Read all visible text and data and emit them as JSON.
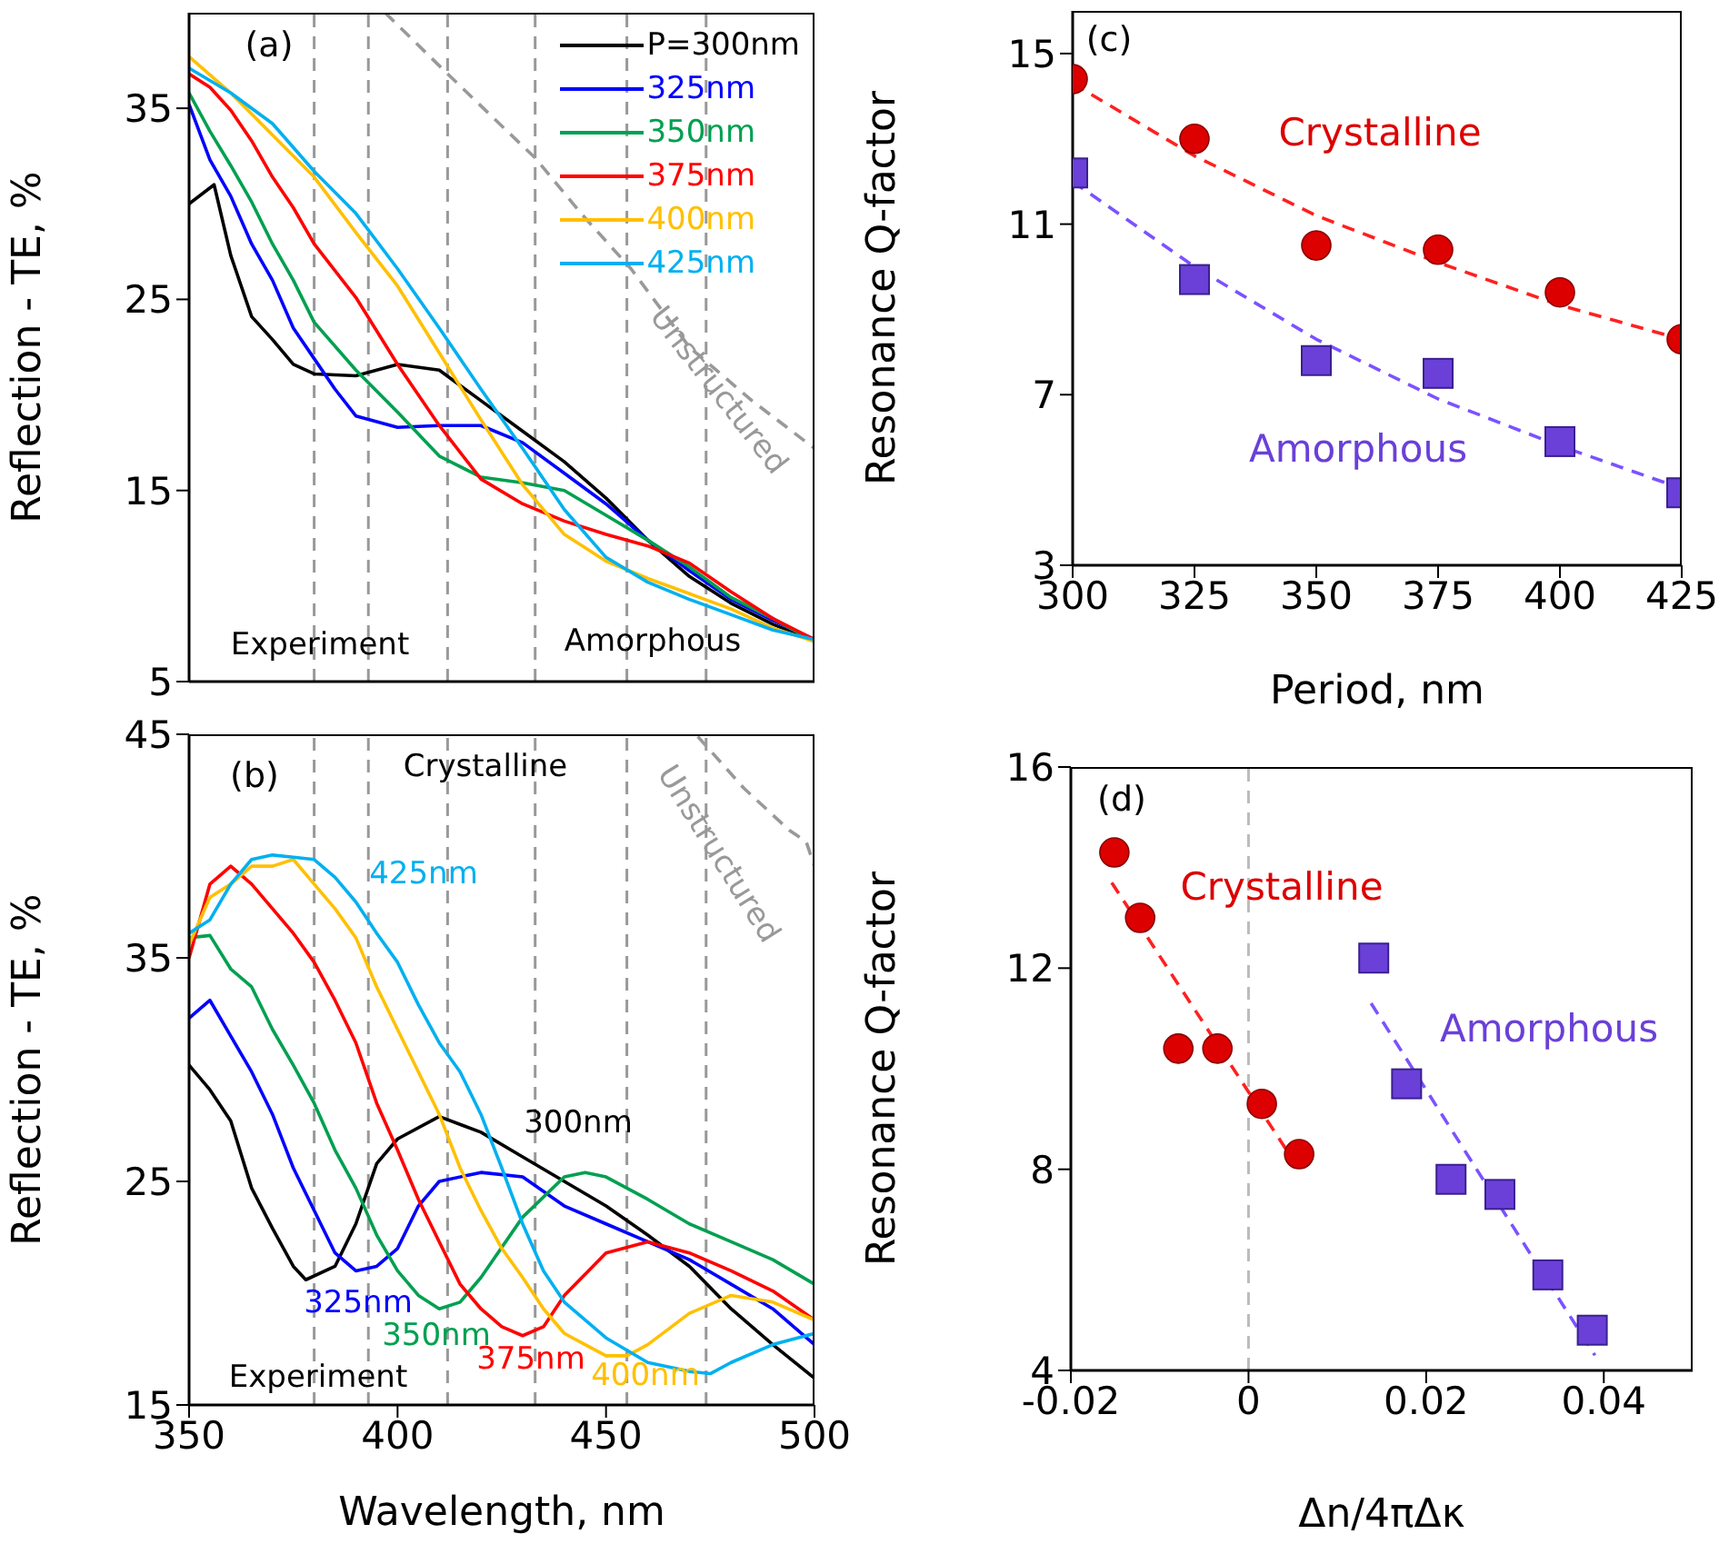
{
  "chart_data": [
    {
      "type": "line",
      "ylabel": "Reflection - TE, %",
      "xlim": [
        350,
        500
      ],
      "xticks": [
        350,
        400,
        450,
        500
      ],
      "ylim": [
        5,
        40
      ],
      "yticks": [
        5,
        15,
        25,
        35
      ],
      "tick_labels": "y",
      "legend": "top right",
      "annotations": [
        "(a)",
        "Experiment",
        "Amorphous"
      ],
      "ref_lines": [
        {
          "axis": "x",
          "value": 380,
          "color": "#999999",
          "line_style": "dashed"
        },
        {
          "axis": "x",
          "value": 393,
          "color": "#999999",
          "line_style": "dashed"
        },
        {
          "axis": "x",
          "value": 412,
          "color": "#999999",
          "line_style": "dashed"
        },
        {
          "axis": "x",
          "value": 433,
          "color": "#999999",
          "line_style": "dashed"
        },
        {
          "axis": "x",
          "value": 455,
          "color": "#999999",
          "line_style": "dashed"
        },
        {
          "axis": "x",
          "value": 474,
          "color": "#999999",
          "line_style": "dashed"
        }
      ],
      "series": [
        {
          "name": "P=300nm",
          "color": "#000000",
          "x": [
            350,
            356,
            360,
            365,
            370,
            375,
            380,
            390,
            400,
            410,
            420,
            430,
            440,
            450,
            460,
            470,
            480,
            490,
            500
          ],
          "values": [
            30,
            31,
            27.3,
            24.1,
            22.9,
            21.6,
            21.1,
            21,
            21.6,
            21.3,
            19.7,
            18.1,
            16.5,
            14.6,
            12.4,
            10.5,
            9.1,
            8,
            7.1
          ]
        },
        {
          "name": "325nm",
          "color": "#0000ff",
          "x": [
            350,
            355,
            360,
            365,
            370,
            375,
            380,
            385,
            390,
            400,
            410,
            420,
            430,
            440,
            450,
            460,
            470,
            480,
            490,
            500
          ],
          "values": [
            35.2,
            32.3,
            30.4,
            27.9,
            26,
            23.5,
            21.9,
            20.3,
            18.9,
            18.3,
            18.4,
            18.4,
            17.5,
            15.9,
            14.3,
            12.4,
            10.8,
            9.3,
            8.2,
            7.2
          ]
        },
        {
          "name": "350nm",
          "color": "#00a050",
          "x": [
            350,
            355,
            360,
            365,
            370,
            375,
            380,
            390,
            400,
            410,
            420,
            430,
            440,
            450,
            460,
            470,
            480,
            490,
            500
          ],
          "values": [
            35.8,
            33.8,
            32,
            30.1,
            27.9,
            26,
            23.8,
            21.3,
            19.1,
            16.8,
            15.7,
            15.4,
            15,
            13.7,
            12.4,
            11,
            9.4,
            8.3,
            7.1
          ]
        },
        {
          "name": "375nm",
          "color": "#ff0000",
          "x": [
            350,
            355,
            360,
            365,
            370,
            375,
            380,
            390,
            400,
            410,
            420,
            430,
            440,
            450,
            460,
            470,
            480,
            490,
            500
          ],
          "values": [
            36.8,
            36.1,
            34.9,
            33.3,
            31.4,
            29.8,
            27.9,
            25.1,
            21.6,
            18.4,
            15.6,
            14.3,
            13.4,
            12.7,
            12.1,
            11.2,
            9.7,
            8.3,
            7.2
          ]
        },
        {
          "name": "400nm",
          "color": "#ffc000",
          "x": [
            350,
            360,
            370,
            380,
            390,
            400,
            410,
            420,
            430,
            440,
            450,
            460,
            470,
            480,
            490,
            500
          ],
          "values": [
            37.7,
            35.8,
            33.6,
            31.4,
            28.5,
            25.7,
            22.2,
            18.7,
            15.3,
            12.7,
            11.3,
            10.4,
            9.6,
            8.8,
            7.8,
            7.1
          ]
        },
        {
          "name": "425nm",
          "color": "#00b0f0",
          "x": [
            350,
            360,
            370,
            380,
            390,
            400,
            410,
            420,
            430,
            440,
            450,
            460,
            470,
            480,
            490,
            500
          ],
          "values": [
            37.1,
            35.8,
            34.2,
            31.7,
            29.5,
            26.6,
            23.5,
            20.3,
            17.2,
            14,
            11.5,
            10.2,
            9.3,
            8.5,
            7.7,
            7.2
          ]
        },
        {
          "name": "Unstructured",
          "color": "#999999",
          "line_style": "dashed",
          "x": [
            397,
            412,
            433,
            444,
            456,
            470,
            485,
            500
          ],
          "values": [
            40,
            36.8,
            32.4,
            29.5,
            26.6,
            22.5,
            19.7,
            17.2
          ]
        }
      ]
    },
    {
      "type": "line",
      "ylabel": "Reflection - TE, %",
      "xlabel": "Wavelength, nm",
      "xlim": [
        350,
        500
      ],
      "xticks": [
        350,
        400,
        450,
        500
      ],
      "ylim": [
        15,
        45
      ],
      "yticks": [
        15,
        25,
        35,
        45
      ],
      "annotations": [
        "(b)",
        "Crystalline",
        "Experiment"
      ],
      "ref_lines": [
        {
          "axis": "x",
          "value": 380,
          "color": "#999999",
          "line_style": "dashed"
        },
        {
          "axis": "x",
          "value": 393,
          "color": "#999999",
          "line_style": "dashed"
        },
        {
          "axis": "x",
          "value": 412,
          "color": "#999999",
          "line_style": "dashed"
        },
        {
          "axis": "x",
          "value": 433,
          "color": "#999999",
          "line_style": "dashed"
        },
        {
          "axis": "x",
          "value": 455,
          "color": "#999999",
          "line_style": "dashed"
        },
        {
          "axis": "x",
          "value": 474,
          "color": "#999999",
          "line_style": "dashed"
        }
      ],
      "series": [
        {
          "name": "300nm",
          "color": "#000000",
          "x": [
            350,
            355,
            360,
            365,
            370,
            375,
            378,
            385,
            390,
            395,
            400,
            410,
            420,
            430,
            440,
            450,
            460,
            470,
            480,
            490,
            500
          ],
          "values": [
            30.2,
            29.1,
            27.7,
            24.7,
            22.9,
            21.2,
            20.6,
            21.2,
            23.1,
            25.8,
            26.9,
            27.9,
            27.2,
            26.1,
            25,
            23.9,
            22.6,
            21.2,
            19.3,
            17.7,
            16.2
          ]
        },
        {
          "name": "325nm",
          "color": "#0000ff",
          "x": [
            350,
            355,
            360,
            365,
            370,
            375,
            380,
            385,
            390,
            395,
            400,
            405,
            410,
            420,
            430,
            440,
            450,
            460,
            470,
            480,
            490,
            500
          ],
          "values": [
            32.3,
            33.1,
            31.5,
            29.9,
            28,
            25.6,
            23.7,
            21.8,
            21,
            21.2,
            22,
            23.9,
            25,
            25.4,
            25.2,
            23.9,
            23.1,
            22.3,
            21.5,
            20.4,
            19.3,
            17.7
          ]
        },
        {
          "name": "350nm",
          "color": "#00a050",
          "x": [
            350,
            355,
            360,
            365,
            370,
            375,
            380,
            385,
            390,
            395,
            400,
            405,
            410,
            415,
            420,
            430,
            440,
            445,
            450,
            460,
            470,
            480,
            490,
            500
          ],
          "values": [
            35.9,
            36,
            34.5,
            33.7,
            31.8,
            30.2,
            28.5,
            26.4,
            24.7,
            22.6,
            21,
            19.9,
            19.3,
            19.6,
            20.7,
            23.4,
            25.2,
            25.4,
            25.2,
            24.2,
            23.1,
            22.3,
            21.5,
            20.4
          ]
        },
        {
          "name": "375nm",
          "color": "#ff0000",
          "x": [
            350,
            355,
            360,
            365,
            370,
            375,
            380,
            385,
            390,
            395,
            400,
            405,
            410,
            415,
            420,
            425,
            430,
            435,
            440,
            450,
            460,
            470,
            480,
            490,
            500
          ],
          "values": [
            35,
            38.3,
            39.1,
            38.3,
            37.2,
            36.1,
            34.8,
            33.1,
            31.2,
            28.5,
            26.4,
            24.2,
            22.3,
            20.4,
            19.3,
            18.5,
            18.1,
            18.5,
            19.9,
            21.8,
            22.3,
            21.8,
            21,
            20.1,
            18.8
          ]
        },
        {
          "name": "400nm",
          "color": "#ffc000",
          "x": [
            350,
            355,
            360,
            365,
            370,
            375,
            380,
            385,
            390,
            395,
            400,
            405,
            410,
            415,
            420,
            425,
            430,
            435,
            440,
            445,
            450,
            455,
            460,
            470,
            480,
            490,
            500
          ],
          "values": [
            35.6,
            37.7,
            38.3,
            39.1,
            39.1,
            39.4,
            38.3,
            37.2,
            35.9,
            33.7,
            31.8,
            29.9,
            28,
            25.6,
            23.7,
            22,
            20.7,
            19.3,
            18.2,
            17.7,
            17.2,
            17.2,
            17.7,
            19.1,
            19.9,
            19.6,
            18.8
          ]
        },
        {
          "name": "425nm",
          "color": "#00b0f0",
          "x": [
            350,
            355,
            360,
            365,
            370,
            375,
            380,
            385,
            390,
            395,
            400,
            405,
            410,
            415,
            420,
            425,
            430,
            435,
            440,
            450,
            460,
            470,
            475,
            480,
            490,
            500
          ],
          "values": [
            36.1,
            36.7,
            38.3,
            39.4,
            39.6,
            39.5,
            39.4,
            38.6,
            37.5,
            36.1,
            34.8,
            32.9,
            31.2,
            29.9,
            28,
            25.6,
            23.1,
            21,
            19.6,
            18,
            16.9,
            16.5,
            16.4,
            16.9,
            17.7,
            18.2
          ]
        },
        {
          "name": "Unstructured",
          "color": "#999999",
          "line_style": "dashed",
          "x": [
            472,
            483,
            494,
            498,
            500
          ],
          "values": [
            44.9,
            42.6,
            40.7,
            40.2,
            39.1
          ]
        }
      ]
    },
    {
      "type": "scatter",
      "ylabel": "Resonance Q-factor",
      "xlabel": "Period, nm",
      "xlim": [
        300,
        425
      ],
      "xticks": [
        300,
        325,
        350,
        375,
        400,
        425
      ],
      "ylim": [
        3,
        16
      ],
      "yticks": [
        3,
        7,
        11,
        15
      ],
      "annotations": [
        "(c)"
      ],
      "series": [
        {
          "name": "Crystalline",
          "color": "#dd0000",
          "marker": "circle",
          "x": [
            300,
            325,
            350,
            375,
            400,
            425
          ],
          "values": [
            14.4,
            13,
            10.5,
            10.4,
            9.4,
            8.3
          ]
        },
        {
          "name": "Amorphous",
          "color": "#6a40d8",
          "marker": "square",
          "x": [
            300,
            325,
            350,
            375,
            400,
            425
          ],
          "values": [
            12.2,
            9.7,
            7.8,
            7.5,
            5.9,
            4.7
          ]
        },
        {
          "type": "line",
          "color": "#ff2020",
          "line_style": "dashed",
          "x": [
            300,
            325,
            350,
            375,
            400,
            425
          ],
          "values": [
            14.3,
            12.6,
            11.2,
            10.1,
            9.1,
            8.3
          ]
        },
        {
          "type": "line",
          "color": "#7b52ff",
          "line_style": "dashed",
          "x": [
            300,
            325,
            350,
            375,
            400,
            425
          ],
          "values": [
            12,
            10,
            8.3,
            6.9,
            5.8,
            4.8
          ]
        }
      ]
    },
    {
      "type": "scatter",
      "ylabel": "Resonance Q-factor",
      "xlabel": "Δn/4πΔκ",
      "xlim": [
        -0.02,
        0.05
      ],
      "xticks": [
        -0.02,
        0,
        0.02,
        0.04
      ],
      "ylim": [
        4,
        16
      ],
      "yticks": [
        4,
        8,
        12,
        16
      ],
      "annotations": [
        "(d)"
      ],
      "ref_lines": [
        {
          "axis": "x",
          "value": 0,
          "color": "#bbbbbb",
          "line_style": "dashed"
        }
      ],
      "series": [
        {
          "name": "Crystalline",
          "color": "#dd0000",
          "marker": "circle",
          "x": [
            -0.0151,
            -0.0122,
            -0.0079,
            -0.0035,
            0.0015,
            0.0057
          ],
          "values": [
            14.3,
            13,
            10.4,
            10.4,
            9.3,
            8.3
          ]
        },
        {
          "name": "Amorphous",
          "color": "#6a40d8",
          "marker": "square",
          "x": [
            0.0141,
            0.0178,
            0.0228,
            0.0283,
            0.0337,
            0.0387
          ],
          "values": [
            12.2,
            9.7,
            7.8,
            7.5,
            5.9,
            4.8
          ]
        },
        {
          "type": "line",
          "color": "#ff2020",
          "line_style": "dashed",
          "x": [
            -0.0154,
            0.0057
          ],
          "values": [
            13.7,
            8
          ]
        },
        {
          "type": "line",
          "color": "#7b52ff",
          "line_style": "dashed",
          "x": [
            0.0138,
            0.039
          ],
          "values": [
            11.3,
            4.3
          ]
        }
      ]
    }
  ]
}
